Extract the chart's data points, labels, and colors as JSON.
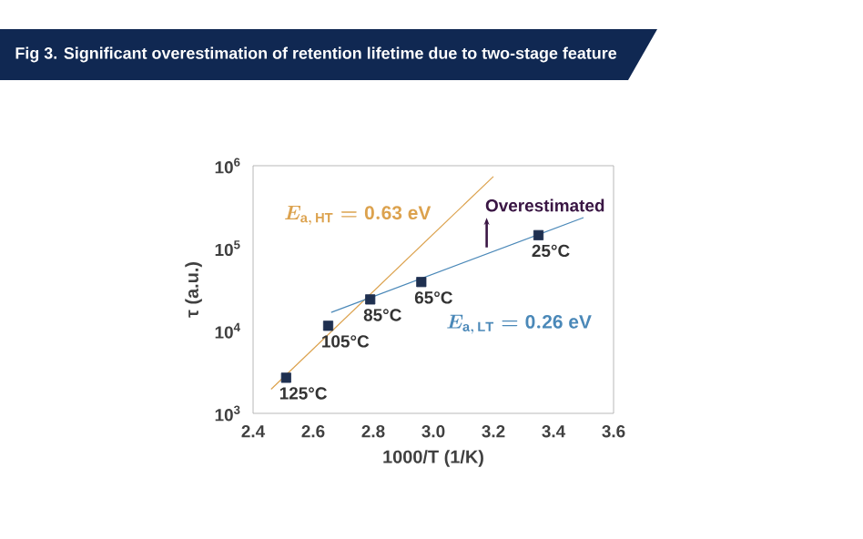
{
  "chart_data": {
    "type": "scatter",
    "title": "Fig 3. Significant overestimation of retention lifetime due to two-stage feature",
    "xlabel": "1000/T (1/K)",
    "ylabel": "τ (a.u.)",
    "log": "y",
    "grid": false,
    "legend": false,
    "xlim": [
      2.4,
      3.6
    ],
    "ylim": [
      1000,
      1000000
    ],
    "xticks": [
      {
        "value": 2.4,
        "label": "2.4"
      },
      {
        "value": 2.6,
        "label": "2.6"
      },
      {
        "value": 2.8,
        "label": "2.8"
      },
      {
        "value": 3.0,
        "label": "3.0"
      },
      {
        "value": 3.2,
        "label": "3.2"
      },
      {
        "value": 3.4,
        "label": "3.4"
      },
      {
        "value": 3.6,
        "label": "3.6"
      }
    ],
    "yticks": [
      {
        "value": 1000,
        "label": "10$^{3}$"
      },
      {
        "value": 10000,
        "label": "10$^{4}$"
      },
      {
        "value": 100000,
        "label": "10$^{5}$"
      },
      {
        "value": 1000000,
        "label": "10$^{6}$"
      }
    ],
    "series": [
      {
        "marker": "square",
        "color": "#1f3050",
        "x": [
          2.51,
          2.65,
          2.79,
          2.96,
          3.35
        ],
        "values": [
          2700,
          11500,
          24000,
          39000,
          144000
        ]
      },
      {
        "type": "line",
        "marker": "none",
        "name": "E_{\\mathrm{a,\\,HT}} = \\mathrm{0.63\\ eV}",
        "color": "#dca24e",
        "x": [
          2.46,
          3.2
        ],
        "values": [
          1960,
          740000
        ]
      },
      {
        "type": "line",
        "marker": "none",
        "name": "E_{\\mathrm{a,\\,LT}} = \\mathrm{0.26\\ eV}",
        "color": "#4a88b8",
        "x": [
          2.66,
          3.5
        ],
        "values": [
          16700,
          235000
        ]
      }
    ],
    "annotations": [
      {
        "text": "125°C",
        "x": 2.51,
        "y": 2700
      },
      {
        "text": "105°C",
        "x": 2.65,
        "y": 11500
      },
      {
        "text": "85°C",
        "x": 2.79,
        "y": 24000
      },
      {
        "text": "65°C",
        "x": 2.96,
        "y": 39000
      },
      {
        "text": "25°C",
        "x": 3.35,
        "y": 144000
      },
      "Overestimated"
    ]
  }
}
